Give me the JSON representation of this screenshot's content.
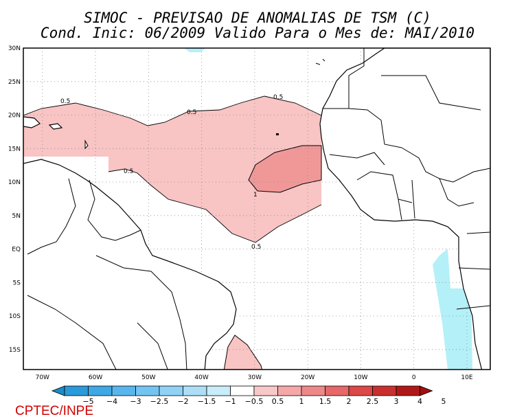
{
  "header": {
    "title": "SIMOC - PREVISAO DE ANOMALIAS DE TSM (C)",
    "subtitle": "Cond. Inic: 06/2009   Valido Para o Mes de: MAI/2010"
  },
  "map": {
    "lon_range": [
      -73,
      15
    ],
    "lat_range": [
      -18,
      30
    ],
    "lat_ticks": [
      "30N",
      "25N",
      "20N",
      "15N",
      "10N",
      "5N",
      "EQ",
      "5S",
      "10S",
      "15S"
    ],
    "lon_ticks": [
      "70W",
      "60W",
      "50W",
      "40W",
      "30W",
      "20W",
      "10W",
      "0",
      "10E"
    ],
    "contour_labels": [
      "0.5",
      "0.5",
      "0.5",
      "0.5",
      "1",
      "0.5"
    ],
    "colors": {
      "land_outline": "#000000",
      "warm_05": "#f8c4c4",
      "warm_1": "#f09898",
      "cool_05": "#b4f0f8"
    }
  },
  "colorbar": {
    "labels": [
      "−5",
      "−4",
      "−3",
      "−2.5",
      "−2",
      "−1.5",
      "−1",
      "−0.5",
      "0.5",
      "1",
      "1.5",
      "2",
      "2.5",
      "3",
      "4",
      "5"
    ],
    "colors": [
      "#1a8cc8",
      "#2a9ad8",
      "#40a8e4",
      "#58b6ec",
      "#74c4f2",
      "#90d2f6",
      "#acdef8",
      "#c8ecfa",
      "#ffffff",
      "#f8c8c8",
      "#f4a8a8",
      "#ee8888",
      "#e66868",
      "#dc4848",
      "#c83030",
      "#b01818",
      "#a01010"
    ]
  },
  "footer": {
    "credit": "CPTEC/INPE"
  }
}
